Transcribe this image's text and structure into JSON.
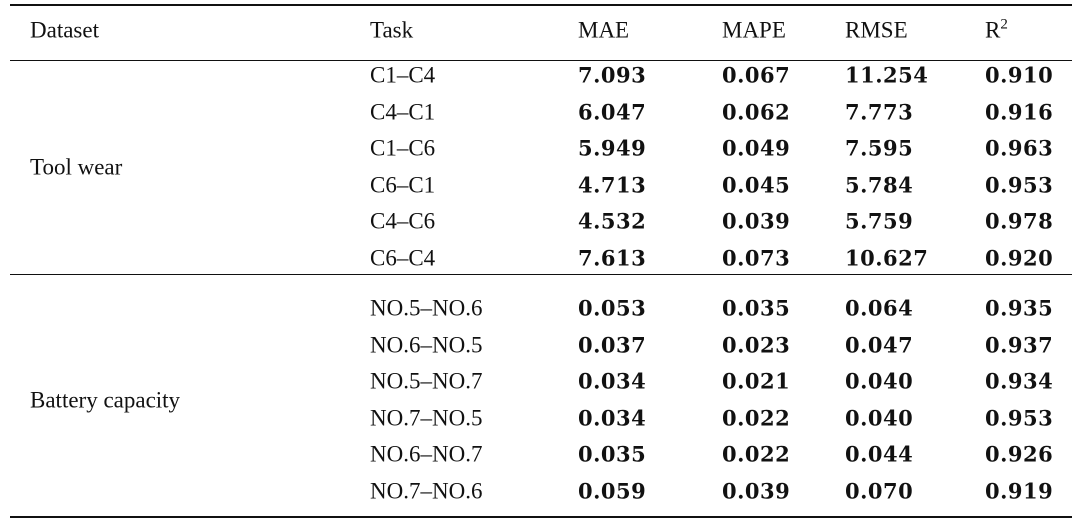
{
  "table": {
    "header": [
      "Dataset",
      "Task",
      "MAE",
      "MAPE",
      "RMSE",
      {
        "text": "R",
        "sup": "2"
      }
    ],
    "groups": [
      {
        "dataset": "Tool wear",
        "rows": [
          [
            "C1–C4",
            "7.093",
            "0.067",
            "11.254",
            "0.910"
          ],
          [
            "C4–C1",
            "6.047",
            "0.062",
            "7.773",
            "0.916"
          ],
          [
            "C1–C6",
            "5.949",
            "0.049",
            "7.595",
            "0.963"
          ],
          [
            "C6–C1",
            "4.713",
            "0.045",
            "5.784",
            "0.953"
          ],
          [
            "C4–C6",
            "4.532",
            "0.039",
            "5.759",
            "0.978"
          ],
          [
            "C6–C4",
            "7.613",
            "0.073",
            "10.627",
            "0.920"
          ]
        ]
      },
      {
        "dataset": "Battery capacity",
        "rows": [
          [
            "NO.5–NO.6",
            "0.053",
            "0.035",
            "0.064",
            "0.935"
          ],
          [
            "NO.6–NO.5",
            "0.037",
            "0.023",
            "0.047",
            "0.937"
          ],
          [
            "NO.5–NO.7",
            "0.034",
            "0.021",
            "0.040",
            "0.934"
          ],
          [
            "NO.7–NO.5",
            "0.034",
            "0.022",
            "0.040",
            "0.953"
          ],
          [
            "NO.6–NO.7",
            "0.035",
            "0.022",
            "0.044",
            "0.926"
          ],
          [
            "NO.7–NO.6",
            "0.059",
            "0.039",
            "0.070",
            "0.919"
          ]
        ]
      }
    ]
  }
}
